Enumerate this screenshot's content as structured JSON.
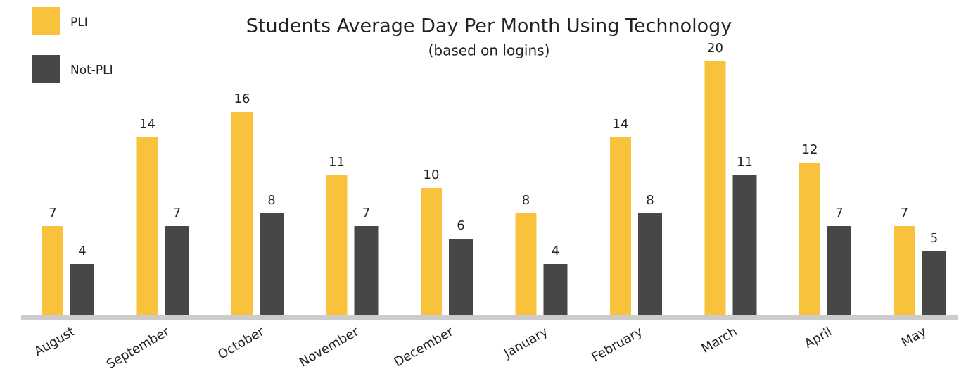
{
  "chart_data": {
    "type": "bar",
    "title": "Students Average Day Per Month Using Technology",
    "subtitle": "(based on logins)",
    "categories": [
      "August",
      "September",
      "October",
      "November",
      "December",
      "January",
      "February",
      "March",
      "April",
      "May"
    ],
    "series": [
      {
        "name": "PLI",
        "color": "#f9c23c",
        "values": [
          7,
          14,
          16,
          11,
          10,
          8,
          14,
          20,
          12,
          7
        ]
      },
      {
        "name": "Not-PLI",
        "color": "#474747",
        "values": [
          4,
          7,
          8,
          7,
          6,
          4,
          8,
          11,
          7,
          5
        ]
      }
    ],
    "legend": "top-left"
  }
}
